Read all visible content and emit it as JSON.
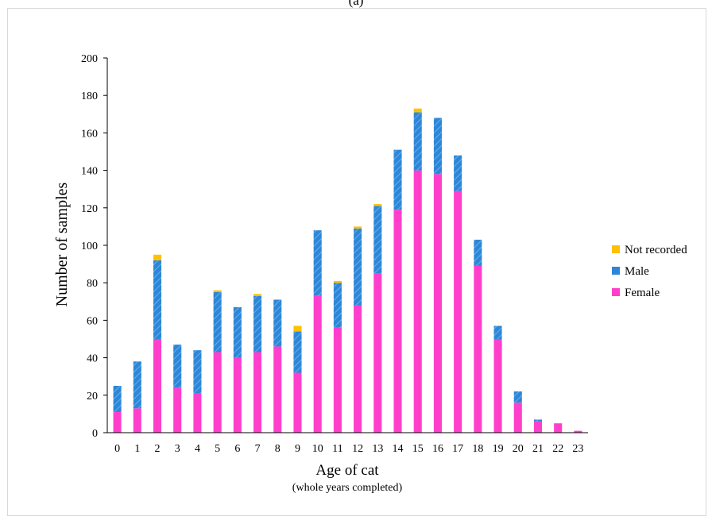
{
  "panel_label": "(a)",
  "chart_data": {
    "type": "bar",
    "stacked": true,
    "xlabel": "Age of cat",
    "xlabel_sub": "(whole years completed)",
    "ylabel": "Number of samples",
    "ylim": [
      0,
      200
    ],
    "yticks": [
      0,
      20,
      40,
      60,
      80,
      100,
      120,
      140,
      160,
      180,
      200
    ],
    "grid": false,
    "legend_position": "right",
    "categories": [
      "0",
      "1",
      "2",
      "3",
      "4",
      "5",
      "6",
      "7",
      "8",
      "9",
      "10",
      "11",
      "12",
      "13",
      "14",
      "15",
      "16",
      "17",
      "18",
      "19",
      "20",
      "21",
      "22",
      "23"
    ],
    "series": [
      {
        "name": "Female",
        "color": "#ff3fcc",
        "pattern": "solid",
        "values": [
          11,
          13,
          50,
          24,
          21,
          43,
          40,
          43,
          46,
          32,
          73,
          56,
          68,
          85,
          119,
          140,
          138,
          129,
          89,
          50,
          16,
          6,
          5,
          1
        ]
      },
      {
        "name": "Male",
        "color": "#2f86d6",
        "pattern": "diagonal-hatch",
        "values": [
          14,
          25,
          42,
          23,
          23,
          32,
          27,
          30,
          25,
          22,
          35,
          24,
          41,
          36,
          32,
          31,
          30,
          19,
          14,
          7,
          6,
          1,
          0,
          0
        ]
      },
      {
        "name": "Not recorded",
        "color": "#ffc000",
        "pattern": "solid",
        "values": [
          0,
          0,
          3,
          0,
          0,
          1,
          0,
          1,
          0,
          3,
          0,
          1,
          1,
          1,
          0,
          2,
          0,
          0,
          0,
          0,
          0,
          0,
          0,
          0
        ]
      }
    ],
    "legend_order": [
      "Not recorded",
      "Male",
      "Female"
    ]
  }
}
